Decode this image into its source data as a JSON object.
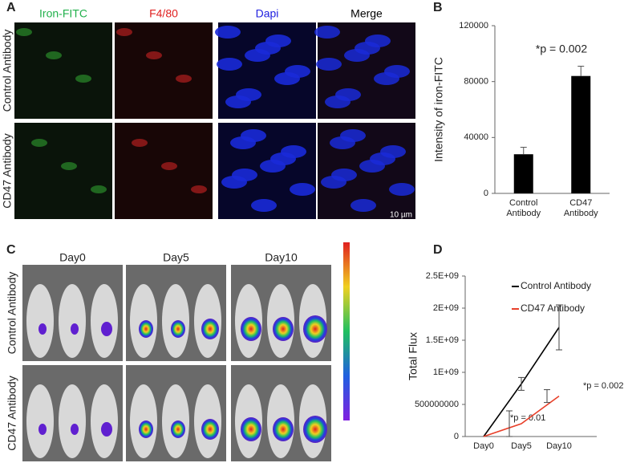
{
  "panel_labels": [
    "A",
    "B",
    "C",
    "D"
  ],
  "panel_a": {
    "columns": [
      {
        "name": "Iron-FITC",
        "color": "#22b14c"
      },
      {
        "name": "F4/80",
        "color": "#e02020"
      },
      {
        "name": "Dapi",
        "color": "#2020e0"
      },
      {
        "name": "Merge",
        "color": "#000000"
      }
    ],
    "rows": [
      "Control Antibody",
      "CD47 Antibody"
    ],
    "scale": "10 µm"
  },
  "panel_c": {
    "columns": [
      "Day0",
      "Day5",
      "Day10"
    ],
    "rows": [
      "Control Antibody",
      "CD47 Antibody"
    ]
  },
  "chart_data": [
    {
      "type": "bar",
      "ylabel": "Intensity of iron-FITC",
      "categories": [
        "Control Antibody",
        "CD47 Antibody"
      ],
      "values": [
        28000,
        84000
      ],
      "errors": [
        5000,
        7000
      ],
      "color": "#000000",
      "ylim": [
        0,
        120000
      ],
      "yticks": [
        0,
        40000,
        80000,
        120000
      ],
      "annotations": [
        "*p = 0.002"
      ]
    },
    {
      "type": "line",
      "ylabel": "Total Flux",
      "categories": [
        "Day0",
        "Day5",
        "Day10"
      ],
      "series": [
        {
          "name": "Control Antibody",
          "color": "#000000",
          "values": [
            0,
            820000000,
            1700000000
          ],
          "errors": [
            0,
            100000000,
            350000000
          ]
        },
        {
          "name": "CD47 Antibody",
          "color": "#e8402a",
          "values": [
            0,
            200000000,
            630000000
          ],
          "errors": [
            0,
            200000000,
            100000000
          ]
        }
      ],
      "ylim": [
        0,
        2500000000
      ],
      "yticks": [
        0,
        500000000,
        {
          "value": 1000000000,
          "label": "1E+09"
        },
        {
          "value": 1500000000,
          "label": "1.5E+09"
        },
        {
          "value": 2000000000,
          "label": "2E+09"
        },
        {
          "value": 2500000000,
          "label": "2.5E+09"
        }
      ],
      "annotations": [
        "*p = 0.01",
        "*p = 0.002"
      ]
    }
  ]
}
